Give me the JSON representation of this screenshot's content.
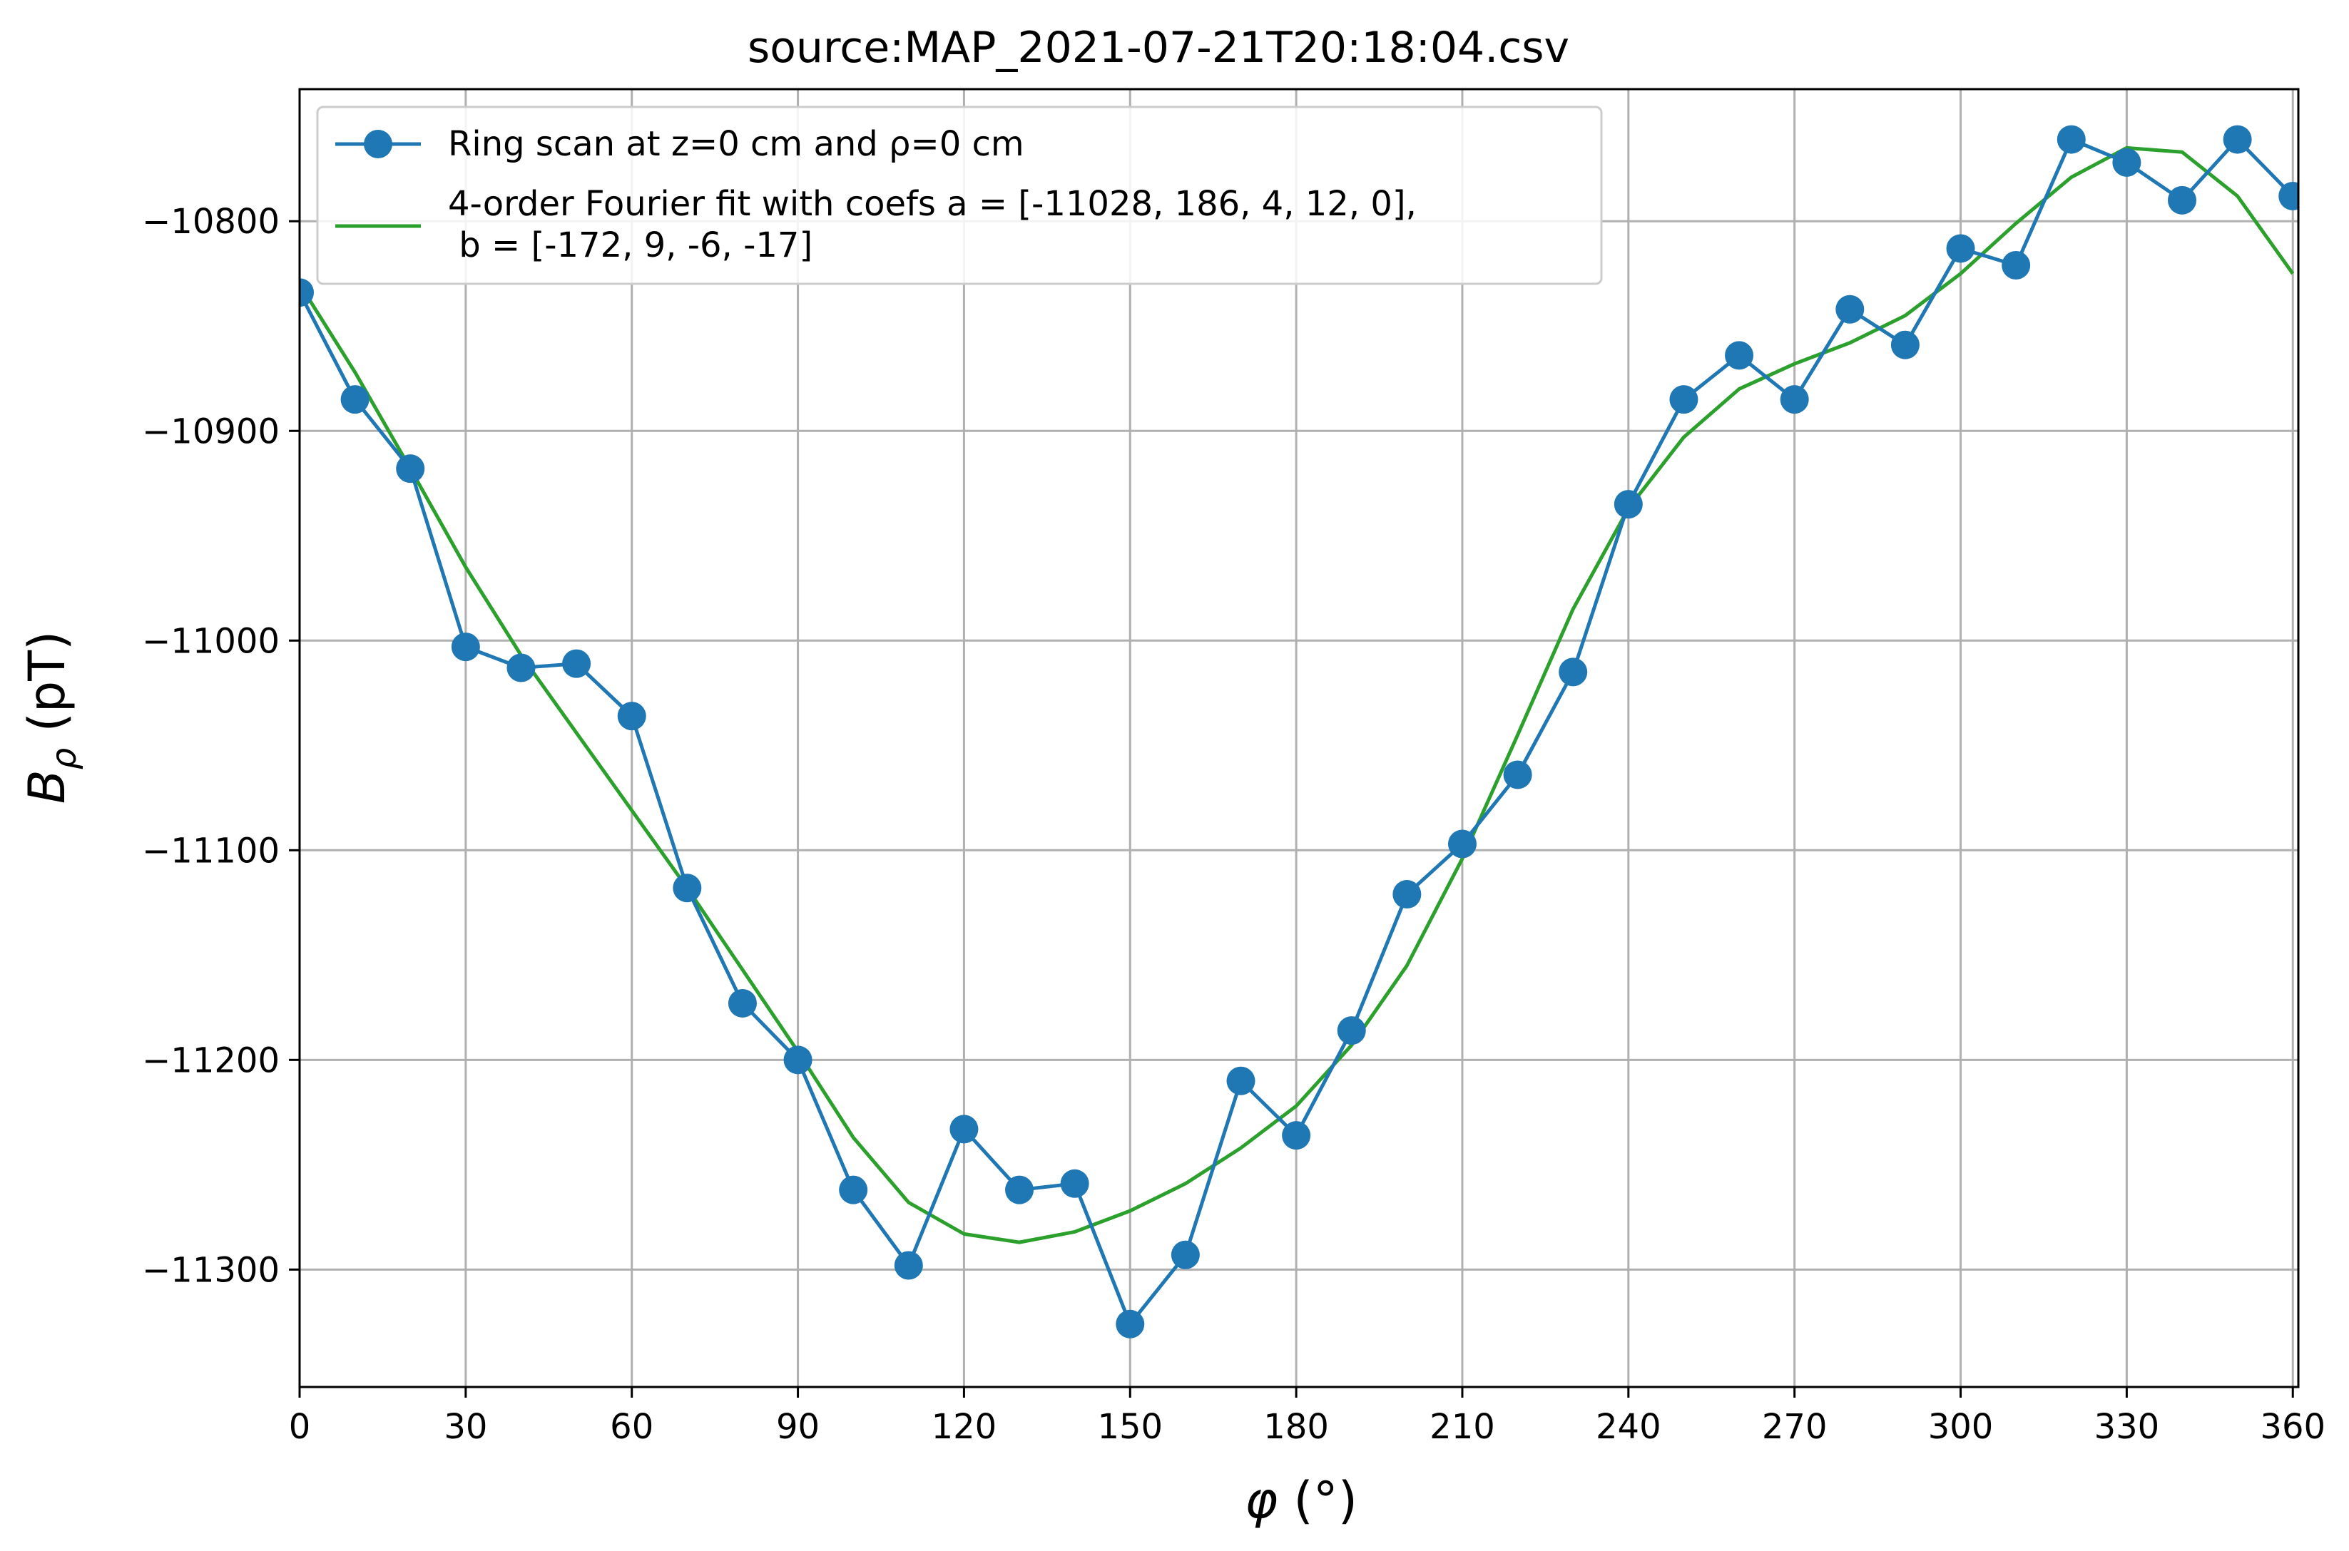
{
  "chart_data": {
    "type": "line",
    "title": "source:MAP_2021-07-21T20:18:04.csv",
    "xlabel": "φ (°)",
    "ylabel": "B_ρ (pT)",
    "xlim": [
      0,
      361
    ],
    "ylim": [
      -11356,
      -10737
    ],
    "grid": true,
    "legend_position": "top-left",
    "x_ticks": [
      0,
      30,
      60,
      90,
      120,
      150,
      180,
      210,
      240,
      270,
      300,
      330,
      360
    ],
    "x_tick_labels": [
      "0",
      "30",
      "60",
      "90",
      "120",
      "150",
      "180",
      "210",
      "240",
      "270",
      "300",
      "330",
      "360"
    ],
    "y_ticks": [
      -10800,
      -10900,
      -11000,
      -11100,
      -11200,
      -11300
    ],
    "y_tick_labels": [
      "−10800",
      "−10900",
      "−11000",
      "−11100",
      "−11200",
      "−11300"
    ],
    "series": [
      {
        "name": "Ring scan at z=0 cm and ρ=0 cm",
        "color": "#1f77b4",
        "marker": "circle",
        "x": [
          0,
          10,
          20,
          30,
          40,
          50,
          60,
          70,
          80,
          90,
          100,
          110,
          120,
          130,
          140,
          150,
          160,
          170,
          180,
          190,
          200,
          210,
          220,
          230,
          240,
          250,
          260,
          270,
          280,
          290,
          300,
          310,
          320,
          330,
          340,
          350,
          360
        ],
        "y": [
          -10834,
          -10885,
          -10918,
          -11003,
          -11013,
          -11011,
          -11036,
          -11118,
          -11173,
          -11200,
          -11262,
          -11298,
          -11233,
          -11262,
          -11259,
          -11326,
          -11293,
          -11210,
          -11236,
          -11186,
          -11121,
          -11097,
          -11064,
          -11015,
          -10935,
          -10885,
          -10864,
          -10885,
          -10842,
          -10859,
          -10813,
          -10821,
          -10761,
          -10772,
          -10790,
          -10761,
          -10788
        ]
      },
      {
        "name": "4-order Fourier fit with coefs a = [-11028, 186, 4, 12, 0],\n b = [-172, 9, -6, -17]",
        "color": "#2ca02c",
        "marker": "none",
        "x": [
          0,
          10,
          20,
          30,
          40,
          50,
          60,
          70,
          80,
          90,
          100,
          110,
          120,
          130,
          140,
          150,
          160,
          170,
          180,
          190,
          200,
          210,
          220,
          230,
          240,
          250,
          260,
          270,
          280,
          290,
          300,
          310,
          320,
          330,
          340,
          350,
          360
        ],
        "y": [
          -10830,
          -10872,
          -10918,
          -10965,
          -11007,
          -11044,
          -11081,
          -11118,
          -11157,
          -11196,
          -11237,
          -11268,
          -11283,
          -11287,
          -11282,
          -11272,
          -11259,
          -11242,
          -11222,
          -11193,
          -11155,
          -11104,
          -11045,
          -10985,
          -10937,
          -10903,
          -10880,
          -10868,
          -10858,
          -10845,
          -10825,
          -10801,
          -10779,
          -10765,
          -10767,
          -10788,
          -10825
        ]
      }
    ]
  }
}
